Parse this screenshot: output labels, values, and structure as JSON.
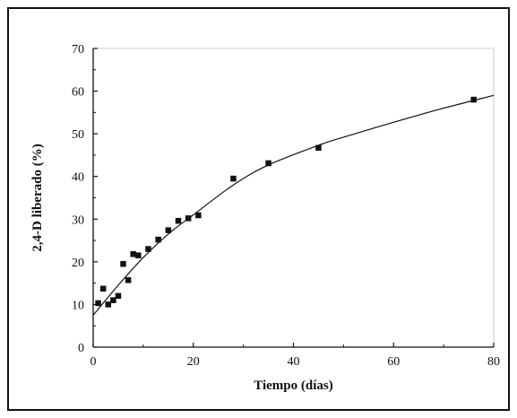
{
  "chart_data": {
    "type": "scatter",
    "xlabel": "Tiempo (días)",
    "ylabel": "2,4-D liberado (%)",
    "xlim": [
      0,
      80
    ],
    "ylim": [
      0,
      70
    ],
    "x_ticks": [
      0,
      20,
      40,
      60,
      80
    ],
    "y_ticks": [
      0,
      10,
      20,
      30,
      40,
      50,
      60,
      70
    ],
    "x_tick_labels": [
      "0",
      "20",
      "40",
      "60",
      "80"
    ],
    "y_tick_labels": [
      "0",
      "10",
      "20",
      "30",
      "40",
      "50",
      "60",
      "70"
    ],
    "grid": false,
    "legend": "none",
    "series": [
      {
        "marker": "square",
        "color": "#111111",
        "points": [
          {
            "x": 1,
            "y": 10.3
          },
          {
            "x": 2,
            "y": 13.7
          },
          {
            "x": 3,
            "y": 10.0
          },
          {
            "x": 4,
            "y": 11.0
          },
          {
            "x": 5,
            "y": 12.0
          },
          {
            "x": 6,
            "y": 19.5
          },
          {
            "x": 7,
            "y": 15.7
          },
          {
            "x": 8,
            "y": 21.8
          },
          {
            "x": 9,
            "y": 21.5
          },
          {
            "x": 11,
            "y": 23.0
          },
          {
            "x": 13,
            "y": 25.2
          },
          {
            "x": 15,
            "y": 27.4
          },
          {
            "x": 17,
            "y": 29.6
          },
          {
            "x": 19,
            "y": 30.2
          },
          {
            "x": 21,
            "y": 30.9
          },
          {
            "x": 28,
            "y": 39.5
          },
          {
            "x": 35,
            "y": 43.1
          },
          {
            "x": 45,
            "y": 46.7
          },
          {
            "x": 76,
            "y": 58.0
          }
        ]
      }
    ],
    "fit_curve": {
      "color": "#111111",
      "points": [
        {
          "x": 0,
          "y": 7.5
        },
        {
          "x": 5,
          "y": 14.5
        },
        {
          "x": 10,
          "y": 21.0
        },
        {
          "x": 15,
          "y": 26.5
        },
        {
          "x": 20,
          "y": 31.0
        },
        {
          "x": 28,
          "y": 38.0
        },
        {
          "x": 35,
          "y": 42.7
        },
        {
          "x": 45,
          "y": 47.3
        },
        {
          "x": 50,
          "y": 49.2
        },
        {
          "x": 60,
          "y": 52.7
        },
        {
          "x": 70,
          "y": 56.0
        },
        {
          "x": 80,
          "y": 59.0
        }
      ]
    }
  }
}
